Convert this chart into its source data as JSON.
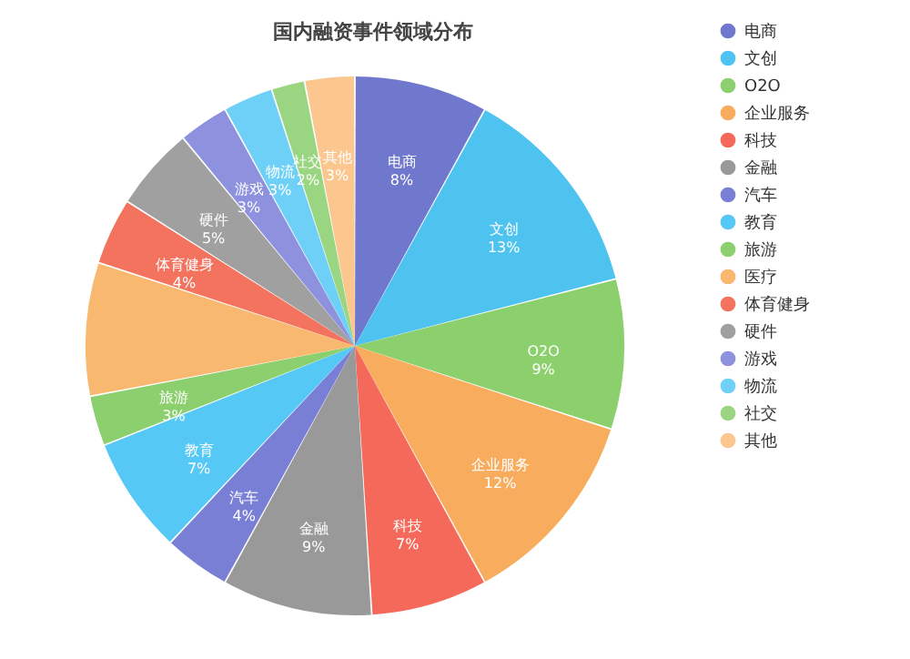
{
  "chart_data": {
    "type": "pie",
    "title": "国内融资事件领域分布",
    "categories": [
      "电商",
      "文创",
      "O2O",
      "企业服务",
      "科技",
      "金融",
      "汽车",
      "教育",
      "旅游",
      "医疗",
      "体育健身",
      "硬件",
      "游戏",
      "物流",
      "社交",
      "其他"
    ],
    "values": [
      8,
      13,
      9,
      12,
      7,
      9,
      4,
      7,
      3,
      8,
      4,
      5,
      3,
      3,
      2,
      3
    ],
    "value_labels": [
      "8%",
      "13%",
      "9%",
      "12%",
      "7%",
      "9%",
      "4%",
      "7%",
      "3%",
      null,
      "4%",
      "5%",
      "3%",
      "3%",
      "2%",
      "3%"
    ],
    "colors": [
      "#6f78cc",
      "#4fc3f0",
      "#8bd06c",
      "#f8ad5e",
      "#f4695a",
      "#999999",
      "#7a7fd6",
      "#56c8f5",
      "#8ccf6e",
      "#f9b870",
      "#f3735f",
      "#a0a0a0",
      "#8d91de",
      "#6fd0f7",
      "#9ad681",
      "#fbc78f"
    ],
    "legend": "right"
  }
}
